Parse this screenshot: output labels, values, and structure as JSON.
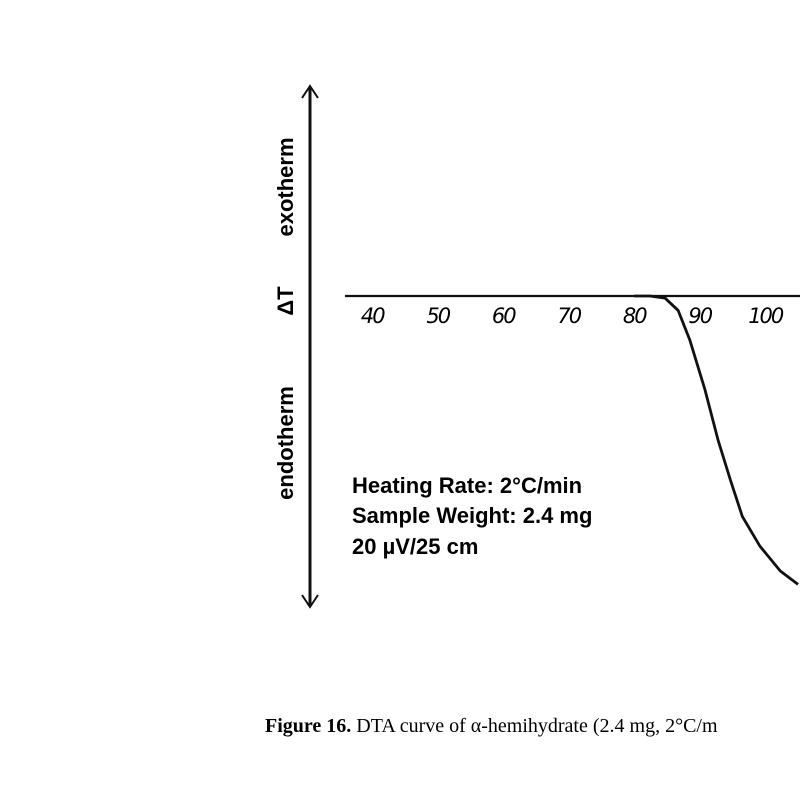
{
  "chart_data": {
    "type": "line",
    "y_axis_labels": {
      "top": "exotherm",
      "middle": "ΔT",
      "bottom": "endotherm"
    },
    "annotations": [
      "Heating Rate:  2°C/min",
      "Sample Weight:  2.4 mg",
      "20 µV/25 cm"
    ],
    "caption": {
      "label": "Figure 16.",
      "text": "DTA curve of α-hemihydrate (2.4 mg, 2°C/m"
    },
    "x": [
      80,
      82.4,
      84.7,
      86.7,
      88.5,
      90.8,
      92.8,
      94.7,
      96.5,
      99.2,
      102.3,
      105
    ],
    "series": [
      {
        "color": "#111111",
        "values": [
          0,
          0,
          -0.02,
          -0.14,
          -0.43,
          -0.91,
          -1.4,
          -1.79,
          -2.14,
          -2.43,
          -2.67,
          -2.8
        ]
      }
    ],
    "xlim": [
      36,
      105
    ],
    "xticks": [
      40,
      50,
      60,
      70,
      80,
      90,
      100
    ],
    "ylim": [
      -3,
      2
    ],
    "grid": false
  }
}
